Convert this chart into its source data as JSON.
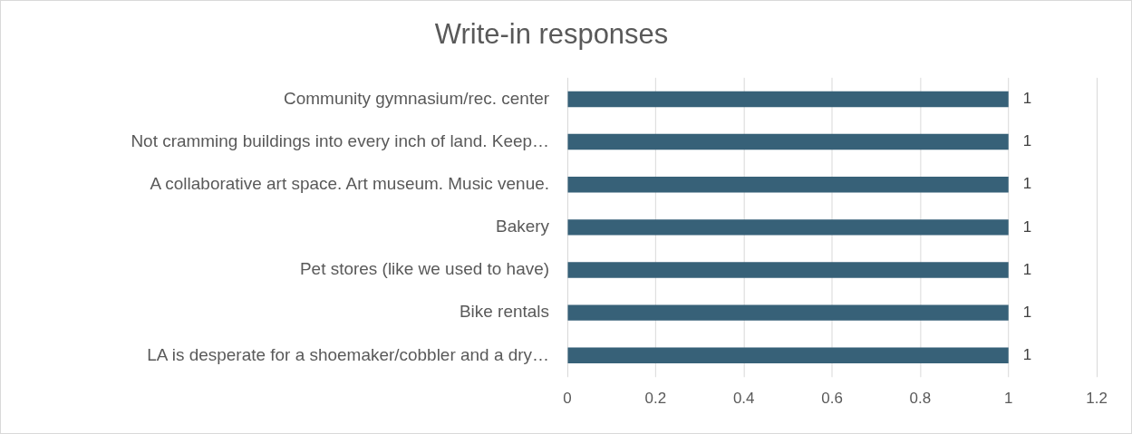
{
  "chart_data": {
    "type": "bar",
    "orientation": "horizontal",
    "title": "Write-in responses",
    "categories": [
      "Community gymnasium/rec. center",
      "Not cramming buildings into every inch of land. Keep…",
      "A collaborative art space. Art museum. Music venue.",
      "Bakery",
      "Pet stores (like we used to have)",
      "Bike rentals",
      "LA is desperate for a shoemaker/cobbler and a dry…"
    ],
    "values": [
      1,
      1,
      1,
      1,
      1,
      1,
      1
    ],
    "color": "#376178",
    "xlim": [
      0,
      1.2
    ],
    "xticks": [
      0,
      0.2,
      0.4,
      0.6,
      0.8,
      1,
      1.2
    ],
    "grid": "x",
    "data_labels": true,
    "legend": false
  }
}
